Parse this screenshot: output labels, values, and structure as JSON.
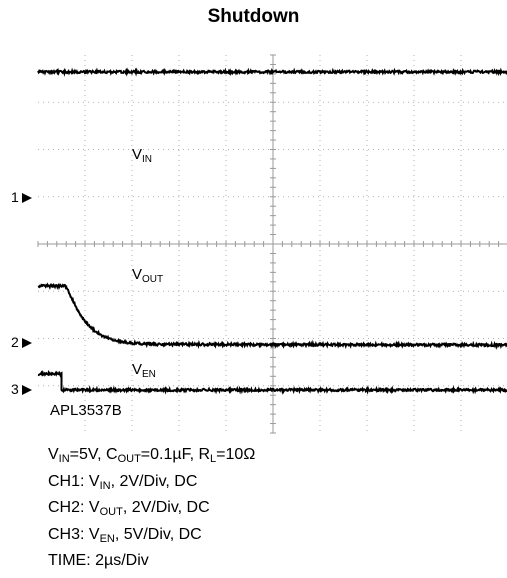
{
  "title": "Shutdown",
  "chart_data": {
    "type": "line",
    "title": "Shutdown",
    "x_unit": "µs",
    "time_per_div_us": 2,
    "divisions_x": 10,
    "divisions_y": 8,
    "series": [
      {
        "name": "VIN",
        "channel": "1",
        "volts_per_div": 2,
        "x": [
          0,
          20
        ],
        "y": [
          5.0,
          5.0
        ]
      },
      {
        "name": "VOUT",
        "channel": "2",
        "volts_per_div": 2,
        "x": [
          0,
          1.2,
          1.4,
          1.7,
          2.0,
          2.4,
          2.8,
          3.3,
          4.0,
          5.0,
          20
        ],
        "y": [
          2.5,
          2.5,
          2.05,
          1.45,
          1.0,
          0.6,
          0.35,
          0.18,
          0.08,
          0.03,
          0.0
        ]
      },
      {
        "name": "VEN",
        "channel": "3",
        "volts_per_div": 5,
        "x": [
          0,
          1.0,
          1.0,
          20
        ],
        "y": [
          1.7,
          1.7,
          0,
          0
        ]
      }
    ]
  },
  "markers": {
    "ch1": "1",
    "ch2": "2",
    "ch3": "3"
  },
  "labels": {
    "vin": {
      "main": "V",
      "sub": "IN"
    },
    "vout": {
      "main": "V",
      "sub": "OUT"
    },
    "ven": {
      "main": "V",
      "sub": "EN"
    }
  },
  "model": "APL3537B",
  "conditions": {
    "line1": {
      "a": "V",
      "a_sub": "IN",
      "b": "=5V, C",
      "b_sub": "OUT",
      "c": "=0.1µF, R",
      "c_sub": "L",
      "d": "=10Ω"
    },
    "ch1": {
      "pre": "CH1: V",
      "sub": "IN",
      "post": ", 2V/Div, DC"
    },
    "ch2": {
      "pre": "CH2: V",
      "sub": "OUT",
      "post": ", 2V/Div, DC"
    },
    "ch3": {
      "pre": "CH3: V",
      "sub": "EN",
      "post": ", 5V/Div, DC"
    },
    "time": "TIME: 2µs/Div"
  },
  "colors": {
    "trace": "#000000",
    "grid": "#b0b0b0",
    "background": "#ffffff"
  }
}
